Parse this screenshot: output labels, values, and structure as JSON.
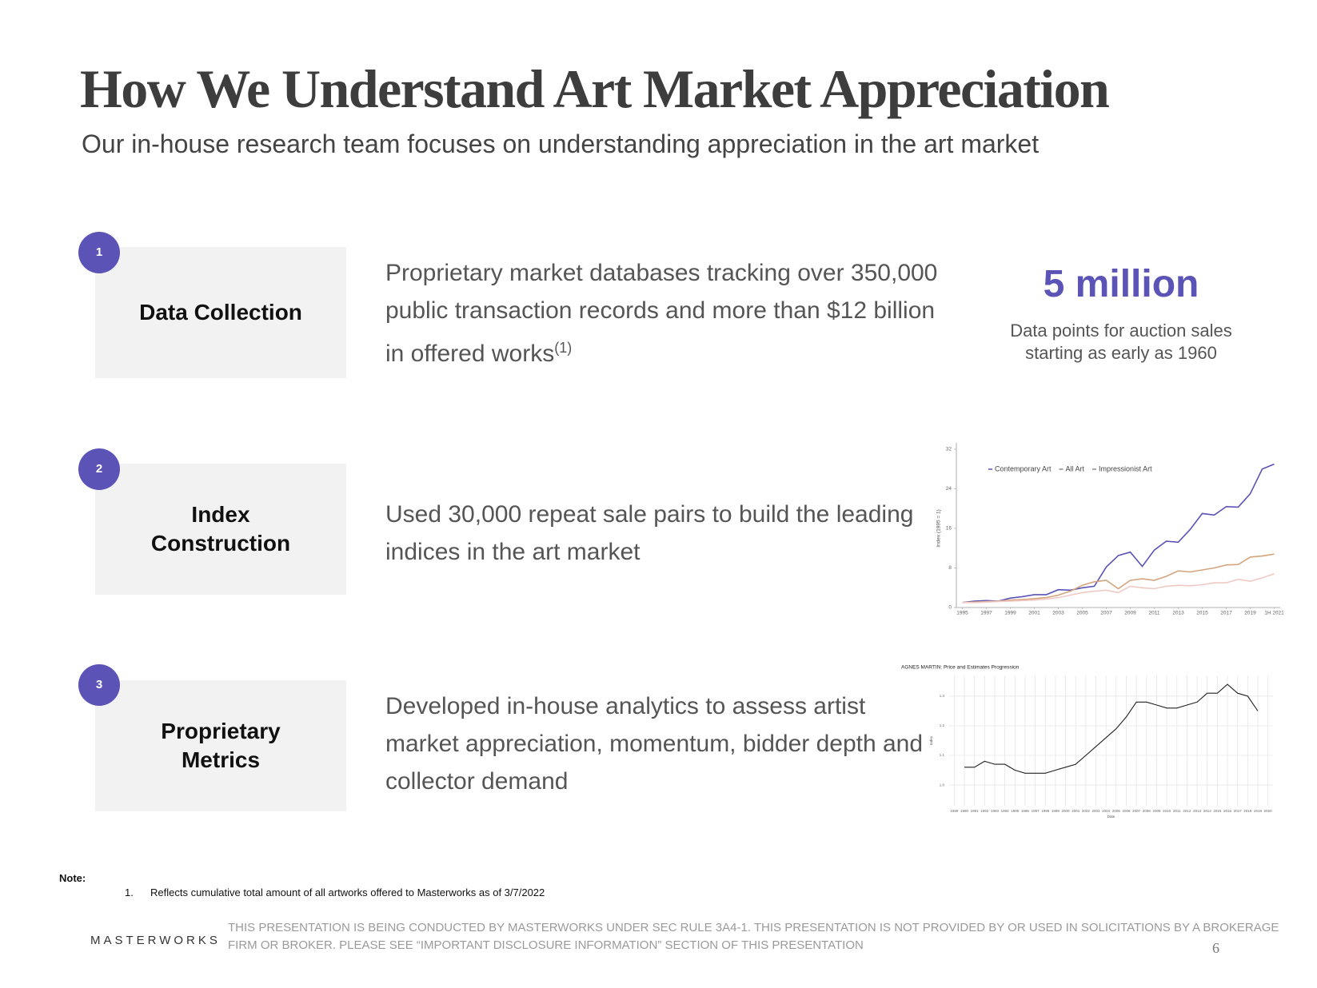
{
  "header": {
    "title": "How We Understand Art Market Appreciation",
    "subtitle": "Our in-house research team focuses on understanding appreciation in the art market"
  },
  "steps": [
    {
      "number": "1",
      "label": "Data Collection",
      "description": "Proprietary market databases tracking over 350,000 public transaction records and more than $12 billion in offered works",
      "footnote_ref": "(1)"
    },
    {
      "number": "2",
      "label": "Index Construction",
      "description": "Used 30,000 repeat sale pairs to build the leading indices in the art market"
    },
    {
      "number": "3",
      "label": "Proprietary Metrics",
      "description": "Developed in-house analytics to assess artist market appreciation, momentum, bidder depth and collector demand"
    }
  ],
  "highlight": {
    "value": "5 million",
    "caption": "Data points for auction sales starting as early as 1960"
  },
  "chart_data": [
    {
      "type": "line",
      "ylabel": "Index (1995 = 1)",
      "x": [
        1995,
        1996,
        1997,
        1998,
        1999,
        2000,
        2001,
        2002,
        2003,
        2004,
        2005,
        2006,
        2007,
        2008,
        2009,
        2010,
        2011,
        2012,
        2013,
        2014,
        2015,
        2016,
        2017,
        2018,
        2019,
        2020,
        2021
      ],
      "series": [
        {
          "name": "Contemporary Art",
          "color": "#5b53b6",
          "values": [
            1,
            1.3,
            1.4,
            1.3,
            1.9,
            2.2,
            2.6,
            2.6,
            3.6,
            3.5,
            4,
            4.3,
            8.2,
            10.5,
            11.2,
            8.3,
            11.6,
            13.4,
            13.2,
            15.8,
            19,
            18.7,
            20.4,
            20.3,
            23,
            28,
            29
          ]
        },
        {
          "name": "All Art",
          "color": "#d4a57d",
          "values": [
            1,
            1.1,
            1.2,
            1.3,
            1.5,
            1.6,
            1.8,
            2,
            2.5,
            3.3,
            4.5,
            5.2,
            5.5,
            3.8,
            5.5,
            5.8,
            5.5,
            6.3,
            7.4,
            7.2,
            7.6,
            8,
            8.6,
            8.7,
            10.2,
            10.4,
            10.8
          ]
        },
        {
          "name": "Impressionist Art",
          "color": "#f0c9c4",
          "values": [
            1,
            1,
            1.1,
            1.2,
            1.3,
            1.4,
            1.5,
            1.7,
            2,
            2.5,
            3,
            3.3,
            3.5,
            3,
            4.3,
            4,
            3.8,
            4.3,
            4.5,
            4.4,
            4.6,
            5,
            5,
            5.7,
            5.3,
            6,
            6.8
          ]
        }
      ],
      "xlim": [
        1994.5,
        2021.5
      ],
      "xticks": [
        1995,
        1997,
        1999,
        2001,
        2003,
        2005,
        2007,
        2009,
        2011,
        2013,
        2015,
        2017,
        2019,
        {
          "value": 2021,
          "label": "1H 2021"
        }
      ],
      "ylim": [
        0,
        32
      ],
      "yticks": [
        0,
        8,
        16,
        24,
        32
      ],
      "grid": false,
      "legend": "top"
    },
    {
      "type": "line",
      "title": "AGNES MARTIN: Price and Estimates Progression",
      "xlabel": "Date",
      "ylabel": "Index",
      "x": [
        1990,
        1991,
        1992,
        1993,
        1994,
        1995,
        1996,
        1997,
        1998,
        1999,
        2000,
        2001,
        2002,
        2003,
        2004,
        2005,
        2006,
        2007,
        2008,
        2009,
        2010,
        2011,
        2012,
        2013,
        2014,
        2015,
        2016,
        2017,
        2018,
        2019
      ],
      "series": [
        {
          "color": "#222222",
          "values": [
            1.06,
            1.06,
            1.08,
            1.07,
            1.07,
            1.05,
            1.04,
            1.04,
            1.04,
            1.05,
            1.06,
            1.07,
            1.1,
            1.13,
            1.16,
            1.19,
            1.23,
            1.28,
            1.28,
            1.27,
            1.26,
            1.26,
            1.27,
            1.28,
            1.31,
            1.31,
            1.34,
            1.31,
            1.3,
            1.25
          ]
        }
      ],
      "xlim": [
        1988.5,
        2020.5
      ],
      "xticks": [
        1989,
        1990,
        1991,
        1992,
        1993,
        1994,
        1995,
        1996,
        1997,
        1998,
        1999,
        2000,
        2001,
        2002,
        2003,
        2004,
        2005,
        2006,
        2007,
        2008,
        2009,
        2010,
        2011,
        2012,
        2013,
        2014,
        2015,
        2016,
        2017,
        2018,
        2019,
        2020
      ],
      "ylim": [
        0.93,
        1.37
      ],
      "yticks": [
        {
          "value": 1,
          "label": "1.0"
        },
        1.1,
        1.2,
        1.3
      ],
      "grid": true
    }
  ],
  "note": {
    "label": "Note:",
    "items": [
      {
        "number": "1.",
        "text": "Reflects cumulative total amount of all artworks offered to Masterworks as of 3/7/2022"
      }
    ]
  },
  "footer": {
    "logo": "MASTERWORKS",
    "disclaimer": "THIS PRESENTATION  IS BEING CONDUCTED BY MASTERWORKS UNDER SEC RULE 3A4-1. THIS PRESENTATION  IS NOT PROVIDED BY OR USED IN SOLICITATIONS BY A BROKERAGE FIRM OR BROKER. PLEASE SEE “IMPORTANT DISCLOSURE INFORMATION” SECTION OF THIS PRESENTATION",
    "page_number": "6"
  }
}
